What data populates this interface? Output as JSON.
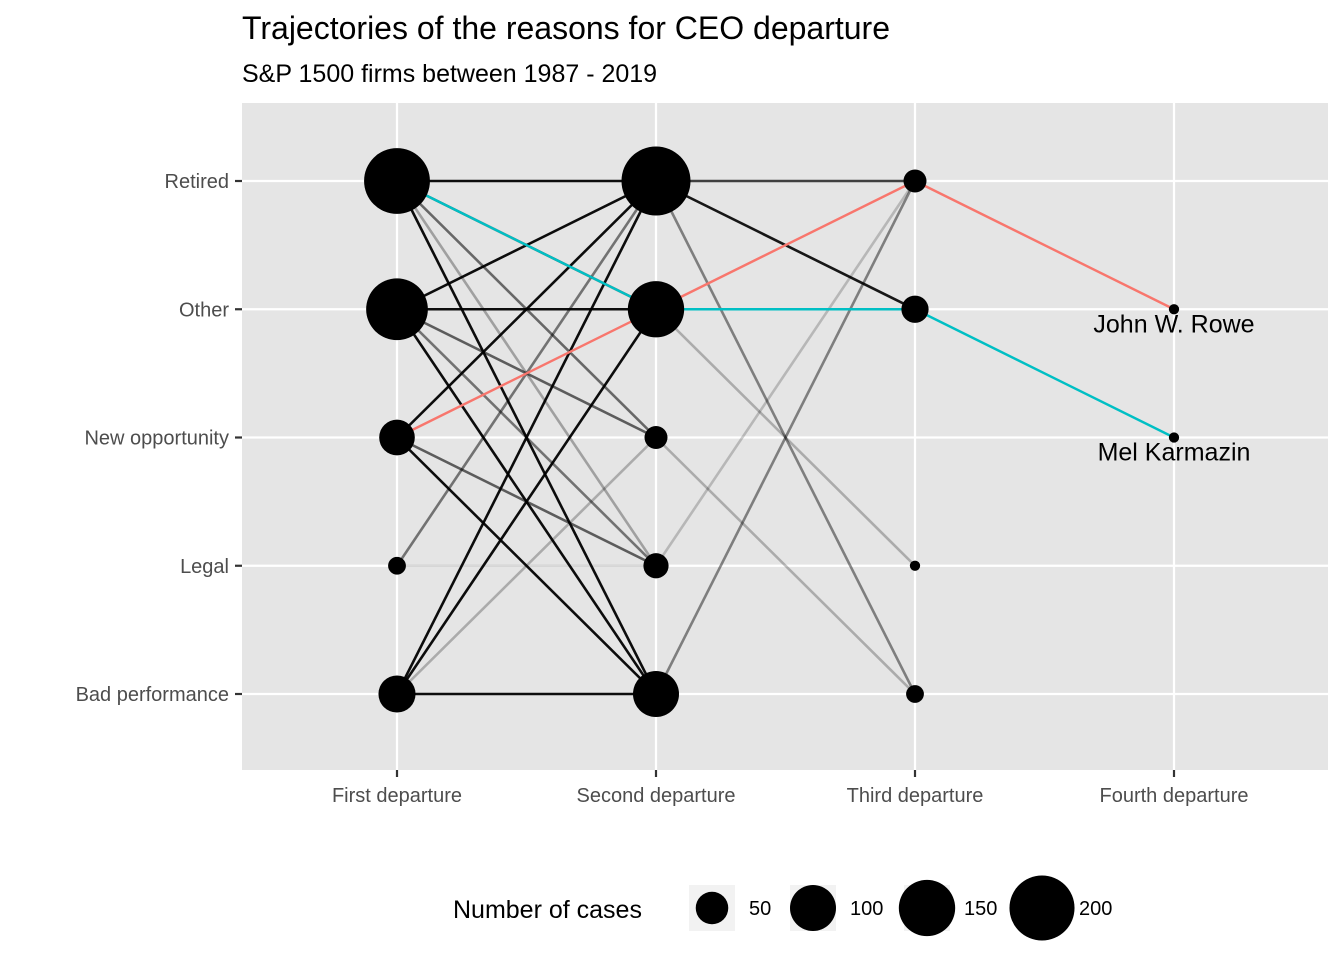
{
  "chart_data": {
    "type": "line",
    "title": "Trajectories of the reasons for CEO departure",
    "subtitle": "S&P 1500 firms between 1987 - 2019",
    "categories": [
      "First departure",
      "Second departure",
      "Third departure",
      "Fourth departure"
    ],
    "y_levels": [
      "Bad performance",
      "Legal",
      "New opportunity",
      "Other",
      "Retired"
    ],
    "grid": true,
    "legend": {
      "title": "Number of cases",
      "position": "bottom",
      "breaks": [
        50,
        100,
        150,
        200
      ]
    },
    "nodes": [
      {
        "x": "First departure",
        "y": "Retired",
        "n": 205
      },
      {
        "x": "First departure",
        "y": "Other",
        "n": 180
      },
      {
        "x": "First departure",
        "y": "New opportunity",
        "n": 60
      },
      {
        "x": "First departure",
        "y": "Legal",
        "n": 15
      },
      {
        "x": "First departure",
        "y": "Bad performance",
        "n": 65
      },
      {
        "x": "Second departure",
        "y": "Retired",
        "n": 225
      },
      {
        "x": "Second departure",
        "y": "Other",
        "n": 150
      },
      {
        "x": "Second departure",
        "y": "New opportunity",
        "n": 25
      },
      {
        "x": "Second departure",
        "y": "Legal",
        "n": 30
      },
      {
        "x": "Second departure",
        "y": "Bad performance",
        "n": 100
      },
      {
        "x": "Third departure",
        "y": "Retired",
        "n": 25
      },
      {
        "x": "Third departure",
        "y": "Other",
        "n": 35
      },
      {
        "x": "Third departure",
        "y": "Legal",
        "n": 5
      },
      {
        "x": "Third departure",
        "y": "Bad performance",
        "n": 15
      },
      {
        "x": "Fourth departure",
        "y": "Other",
        "n": 5
      },
      {
        "x": "Fourth departure",
        "y": "New opportunity",
        "n": 5
      }
    ],
    "links": [
      {
        "from": "First departure",
        "from_y": "Retired",
        "to_y": "Retired",
        "opacity": 0.95
      },
      {
        "from": "First departure",
        "from_y": "Retired",
        "to_y": "Other",
        "opacity": 0.6
      },
      {
        "from": "First departure",
        "from_y": "Retired",
        "to_y": "New opportunity",
        "opacity": 0.55
      },
      {
        "from": "First departure",
        "from_y": "Retired",
        "to_y": "Legal",
        "opacity": 0.3
      },
      {
        "from": "First departure",
        "from_y": "Retired",
        "to_y": "Bad performance",
        "opacity": 0.95
      },
      {
        "from": "First departure",
        "from_y": "Other",
        "to_y": "Retired",
        "opacity": 0.95
      },
      {
        "from": "First departure",
        "from_y": "Other",
        "to_y": "Other",
        "opacity": 0.95
      },
      {
        "from": "First departure",
        "from_y": "Other",
        "to_y": "New opportunity",
        "opacity": 0.6
      },
      {
        "from": "First departure",
        "from_y": "Other",
        "to_y": "Legal",
        "opacity": 0.5
      },
      {
        "from": "First departure",
        "from_y": "Other",
        "to_y": "Bad performance",
        "opacity": 0.95
      },
      {
        "from": "First departure",
        "from_y": "New opportunity",
        "to_y": "Retired",
        "opacity": 0.95
      },
      {
        "from": "First departure",
        "from_y": "New opportunity",
        "to_y": "Legal",
        "opacity": 0.6
      },
      {
        "from": "First departure",
        "from_y": "New opportunity",
        "to_y": "Bad performance",
        "opacity": 0.95
      },
      {
        "from": "First departure",
        "from_y": "Legal",
        "to_y": "Retired",
        "opacity": 0.5
      },
      {
        "from": "First departure",
        "from_y": "Legal",
        "to_y": "Legal",
        "opacity": 0.15
      },
      {
        "from": "First departure",
        "from_y": "Bad performance",
        "to_y": "Retired",
        "opacity": 0.95
      },
      {
        "from": "First departure",
        "from_y": "Bad performance",
        "to_y": "Other",
        "opacity": 0.95
      },
      {
        "from": "First departure",
        "from_y": "Bad performance",
        "to_y": "New opportunity",
        "opacity": 0.25
      },
      {
        "from": "First departure",
        "from_y": "Bad performance",
        "to_y": "Bad performance",
        "opacity": 0.95
      },
      {
        "from": "Second departure",
        "from_y": "Retired",
        "to_y": "Retired",
        "opacity": 0.75
      },
      {
        "from": "Second departure",
        "from_y": "Retired",
        "to_y": "Other",
        "opacity": 0.9
      },
      {
        "from": "Second departure",
        "from_y": "Retired",
        "to_y": "Bad performance",
        "opacity": 0.45
      },
      {
        "from": "Second departure",
        "from_y": "Other",
        "to_y": "Other",
        "opacity": 0.9
      },
      {
        "from": "Second departure",
        "from_y": "Other",
        "to_y": "Legal",
        "opacity": 0.25
      },
      {
        "from": "Second departure",
        "from_y": "New opportunity",
        "to_y": "Bad performance",
        "opacity": 0.25
      },
      {
        "from": "Second departure",
        "from_y": "Legal",
        "to_y": "Retired",
        "opacity": 0.2
      },
      {
        "from": "Second departure",
        "from_y": "Bad performance",
        "to_y": "Retired",
        "opacity": 0.45
      },
      {
        "from": "Second departure",
        "from_y": "Bad performance",
        "to_y": "Other",
        "opacity": 0.0
      }
    ],
    "highlighted": [
      {
        "name": "John W. Rowe",
        "color": "#F8766D",
        "path": [
          "New opportunity",
          "Other",
          "Retired",
          "Other"
        ]
      },
      {
        "name": "Mel Karmazin",
        "color": "#00BFC4",
        "path": [
          "Retired",
          "Other",
          "Other",
          "New opportunity"
        ]
      }
    ],
    "colors": {
      "panel": "#e5e5e5",
      "grid": "#ffffff",
      "link": "#000000",
      "node": "#000000",
      "tick_text": "#4d4d4d",
      "legend_key_bg": "#f2f2f2"
    }
  }
}
